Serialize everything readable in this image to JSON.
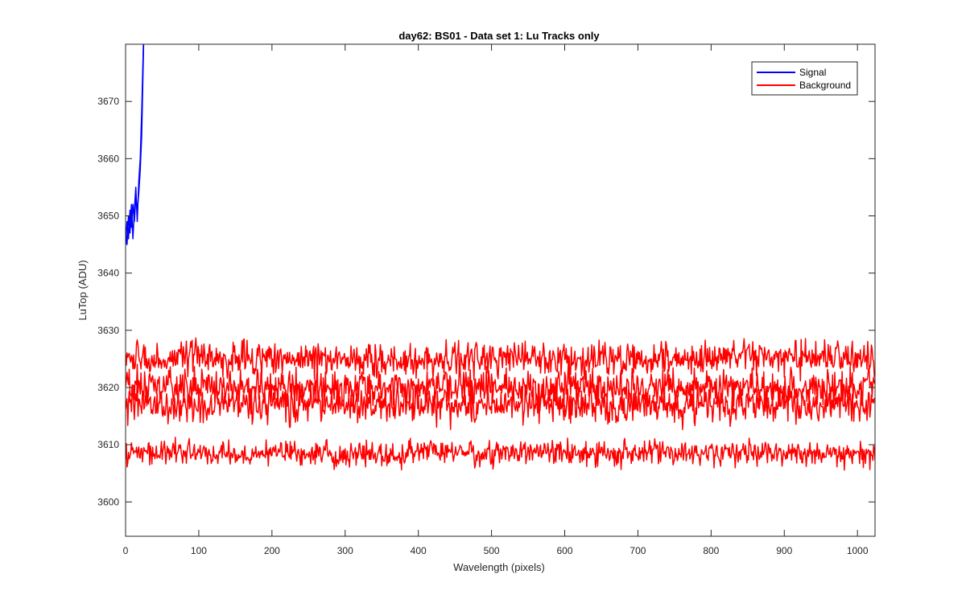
{
  "chart_data": {
    "type": "line",
    "title": "day62: BS01 - Data set 1: Lu Tracks only",
    "xlabel": "Wavelength (pixels)",
    "ylabel": "LuTop (ADU)",
    "xlim": [
      0,
      1024
    ],
    "ylim": [
      3594,
      3680
    ],
    "xticks": [
      0,
      100,
      200,
      300,
      400,
      500,
      600,
      700,
      800,
      900,
      1000
    ],
    "yticks": [
      3600,
      3610,
      3620,
      3630,
      3640,
      3650,
      3660,
      3670
    ],
    "grid": false,
    "legend_position": "top-right",
    "series": [
      {
        "name": "Signal",
        "color": "#0000ff",
        "group": "signal",
        "x": [
          0,
          2,
          4,
          6,
          8,
          10,
          12,
          14,
          16,
          18,
          20,
          22,
          23,
          24,
          25
        ],
        "y": [
          3645,
          3649,
          3646,
          3651,
          3648,
          3652,
          3649,
          3653,
          3651,
          3654,
          3658,
          3664,
          3670,
          3676,
          3682
        ]
      },
      {
        "name": "",
        "color": "#0000ff",
        "group": "signal",
        "x": [
          0,
          2,
          4,
          6,
          8,
          10,
          12,
          14,
          16,
          18,
          20,
          22,
          23,
          24,
          25
        ],
        "y": [
          3647,
          3645,
          3650,
          3647,
          3652,
          3646,
          3651,
          3655,
          3649,
          3656,
          3660,
          3668,
          3673,
          3678,
          3683
        ]
      },
      {
        "name": "Background",
        "color": "#ff0000",
        "group": "background",
        "x": [
          0,
          1024
        ],
        "mean": 3625,
        "noise_amplitude": 2.2
      },
      {
        "name": "",
        "color": "#ff0000",
        "group": "background",
        "x": [
          0,
          1024
        ],
        "mean": 3620,
        "noise_amplitude": 2.3
      },
      {
        "name": "",
        "color": "#ff0000",
        "group": "background",
        "x": [
          0,
          1024
        ],
        "mean": 3617,
        "noise_amplitude": 2.4
      },
      {
        "name": "",
        "color": "#ff0000",
        "group": "background",
        "x": [
          0,
          1024
        ],
        "mean": 3608.5,
        "noise_amplitude": 1.6
      }
    ],
    "legend": [
      {
        "label": "Signal",
        "color": "#0000ff"
      },
      {
        "label": "Background",
        "color": "#ff0000"
      }
    ]
  }
}
